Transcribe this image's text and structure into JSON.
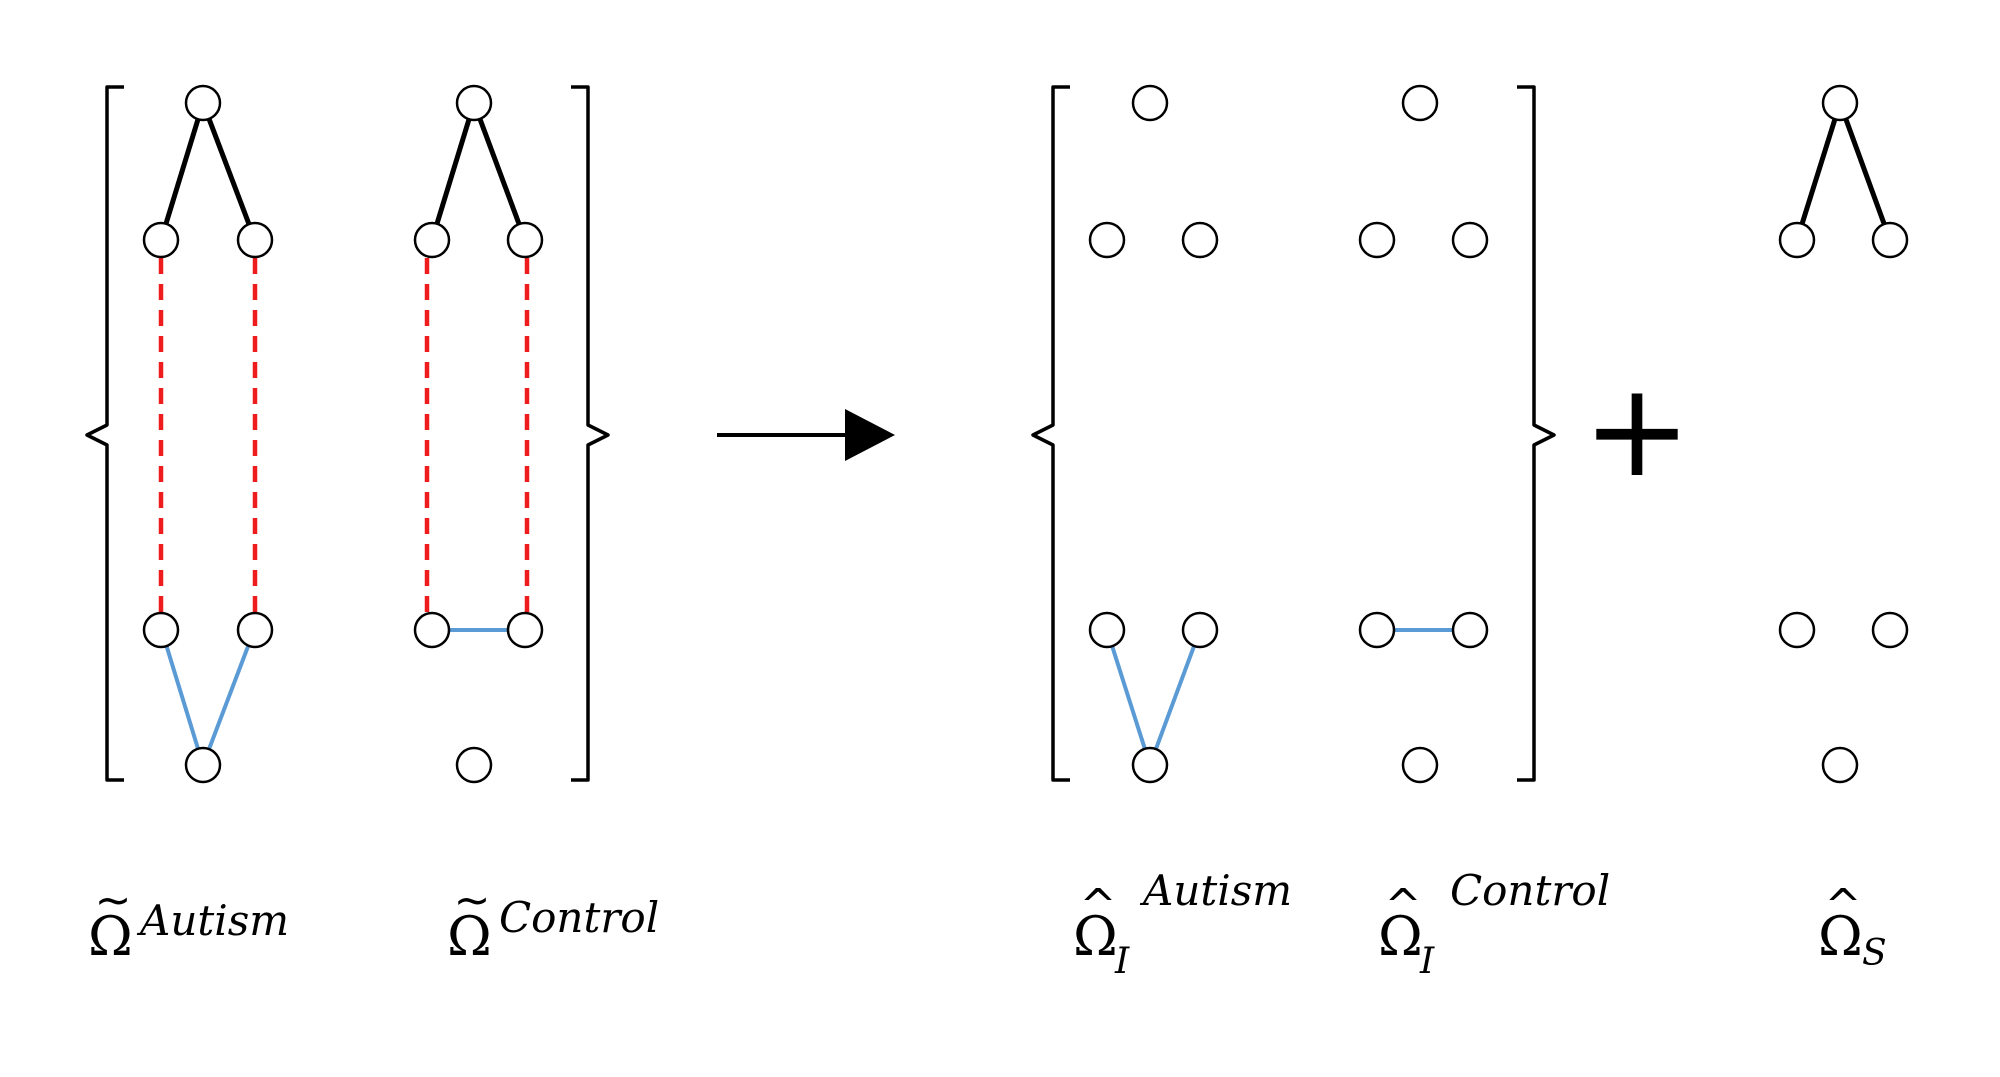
{
  "panels": {
    "tilde_autism": {
      "symbol": "Ω",
      "accent": "~",
      "superscript": "Autism",
      "subscript": ""
    },
    "tilde_control": {
      "symbol": "Ω",
      "accent": "~",
      "superscript": "Control",
      "subscript": ""
    },
    "hat_i_autism": {
      "symbol": "Ω",
      "accent": "^",
      "superscript": "Autism",
      "subscript": "I"
    },
    "hat_i_control": {
      "symbol": "Ω",
      "accent": "^",
      "superscript": "Control",
      "subscript": "I"
    },
    "hat_s": {
      "symbol": "Ω",
      "accent": "^",
      "superscript": "",
      "subscript": "S"
    }
  },
  "operators": {
    "plus": "+"
  },
  "colors": {
    "shared_edge": "#000000",
    "difference_edge_dashed": "#ee1c1c",
    "individual_edge": "#5b9bd5",
    "node_fill": "#ffffff"
  },
  "graphs": {
    "tilde_autism": {
      "edges": [
        [
          "top",
          "left"
        ],
        [
          "top",
          "right"
        ],
        [
          "left",
          "midleft",
          "dashed"
        ],
        [
          "right",
          "midright",
          "dashed"
        ],
        [
          "midleft",
          "bottom",
          "blue"
        ],
        [
          "midright",
          "bottom",
          "blue"
        ]
      ]
    },
    "tilde_control": {
      "edges": [
        [
          "top",
          "left"
        ],
        [
          "top",
          "right"
        ],
        [
          "left",
          "midleft",
          "dashed"
        ],
        [
          "right",
          "midright",
          "dashed"
        ],
        [
          "midleft",
          "midright",
          "blue"
        ]
      ]
    },
    "hat_i_autism": {
      "edges": [
        [
          "midleft",
          "bottom",
          "blue"
        ],
        [
          "midright",
          "bottom",
          "blue"
        ]
      ]
    },
    "hat_i_control": {
      "edges": [
        [
          "midleft",
          "midright",
          "blue"
        ]
      ]
    },
    "hat_s": {
      "edges": [
        [
          "top",
          "left"
        ],
        [
          "top",
          "right"
        ]
      ]
    }
  }
}
